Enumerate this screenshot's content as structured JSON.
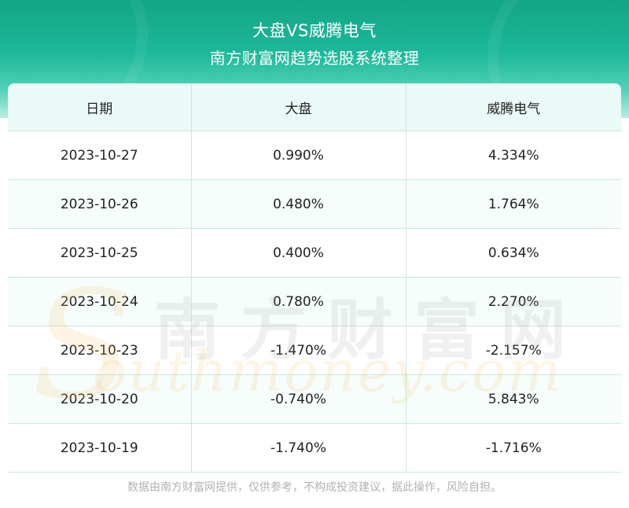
{
  "header": {
    "title": "大盘VS威腾电气",
    "subtitle": "南方财富网趋势选股系统整理"
  },
  "table": {
    "columns": [
      "日期",
      "大盘",
      "威腾电气"
    ],
    "rows": [
      [
        "2023-10-27",
        "0.990%",
        "4.334%"
      ],
      [
        "2023-10-26",
        "0.480%",
        "1.764%"
      ],
      [
        "2023-10-25",
        "0.400%",
        "0.634%"
      ],
      [
        "2023-10-24",
        "0.780%",
        "2.270%"
      ],
      [
        "2023-10-23",
        "-1.470%",
        "-2.157%"
      ],
      [
        "2023-10-20",
        "-0.740%",
        "5.843%"
      ],
      [
        "2023-10-19",
        "-1.740%",
        "-1.716%"
      ]
    ]
  },
  "watermark": {
    "cn": "南方财富网",
    "en_initial": "S",
    "en": "outhmoney.com"
  },
  "footer": {
    "disclaimer": "数据由南方财富网提供，仅供参考，不构成投资建议，据此操作，风险自担。"
  },
  "colors": {
    "header_green": "#1db89a",
    "header_row_bg": "#e9faf7",
    "grid_line": "#cbe7e2",
    "footer_text": "#b2b2b2"
  }
}
